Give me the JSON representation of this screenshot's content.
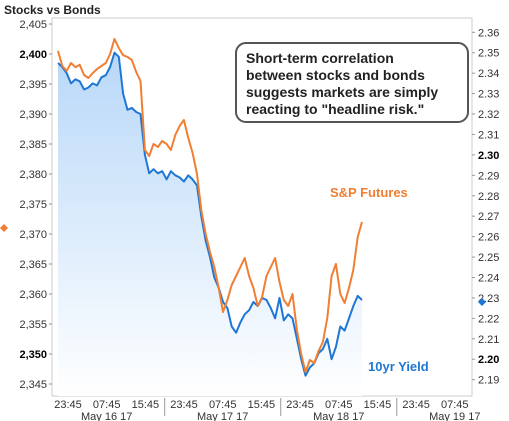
{
  "chart_data": {
    "type": "line",
    "title": "Stocks vs Bonds",
    "annotation": [
      "Short-term correlation",
      "between stocks and bonds",
      "suggests markets are simply",
      "reacting to \"headline risk.\""
    ],
    "x_tick_times": [
      "23:45",
      "07:45",
      "15:45",
      "23:45",
      "07:45",
      "15:45",
      "23:45",
      "07:45",
      "15:45",
      "23:45",
      "07:45"
    ],
    "x_tick_dates": [
      "May 16 17",
      "May 17 17",
      "May 18 17",
      "May 19 17"
    ],
    "y_left": {
      "ylim": [
        2343,
        2406
      ],
      "ticks": [
        "2,345",
        "2,350",
        "2,355",
        "2,360",
        "2,365",
        "2,370",
        "2,375",
        "2,380",
        "2,385",
        "2,390",
        "2,395",
        "2,400",
        "2,405"
      ],
      "bold_ticks": [
        "2,350",
        "2,400"
      ]
    },
    "y_right": {
      "ylim": [
        2.182,
        2.367
      ],
      "ticks": [
        "2.19",
        "2.20",
        "2.21",
        "2.22",
        "2.23",
        "2.24",
        "2.25",
        "2.26",
        "2.27",
        "2.28",
        "2.29",
        "2.30",
        "2.31",
        "2.32",
        "2.33",
        "2.34",
        "2.35",
        "2.36"
      ],
      "bold_ticks": [
        "2.20",
        "2.30"
      ]
    },
    "series": [
      {
        "name": "10yr Yield",
        "axis": "right",
        "color": "#1f77d4",
        "fill_top": "#b8d8f8",
        "fill_bottom": "#ffffff",
        "x": [
          0,
          2,
          4,
          6,
          8,
          10,
          12,
          14,
          16,
          18,
          20,
          22,
          24,
          26,
          28,
          30,
          32,
          34,
          36,
          38,
          40,
          42,
          44,
          46,
          48,
          50,
          52,
          54,
          56,
          58,
          60,
          62,
          64,
          66,
          68,
          70,
          72,
          74,
          76,
          78,
          80,
          82,
          84,
          86,
          88,
          90,
          92,
          94,
          96,
          98,
          100,
          102,
          104,
          106,
          108,
          110,
          112,
          114,
          116,
          118,
          120,
          122,
          124,
          126,
          128,
          130,
          132,
          134,
          136,
          138,
          140
        ],
        "y": [
          2.345,
          2.343,
          2.34,
          2.335,
          2.337,
          2.336,
          2.332,
          2.333,
          2.335,
          2.334,
          2.338,
          2.339,
          2.343,
          2.35,
          2.348,
          2.33,
          2.322,
          2.323,
          2.321,
          2.32,
          2.3,
          2.291,
          2.293,
          2.291,
          2.292,
          2.288,
          2.292,
          2.29,
          2.289,
          2.287,
          2.29,
          2.288,
          2.285,
          2.27,
          2.258,
          2.25,
          2.24,
          2.235,
          2.228,
          2.225,
          2.216,
          2.213,
          2.218,
          2.222,
          2.224,
          2.228,
          2.226,
          2.23,
          2.229,
          2.225,
          2.22,
          2.23,
          2.219,
          2.222,
          2.22,
          2.21,
          2.2,
          2.192,
          2.196,
          2.198,
          2.203,
          2.205,
          2.21,
          2.2,
          2.206,
          2.216,
          2.214,
          2.22,
          2.226,
          2.231,
          2.229
        ]
      },
      {
        "name": "S&P Futures",
        "axis": "left",
        "color": "#f07f33",
        "x": [
          0,
          2,
          4,
          6,
          8,
          10,
          12,
          14,
          16,
          18,
          20,
          22,
          24,
          26,
          28,
          30,
          32,
          34,
          36,
          38,
          40,
          42,
          44,
          46,
          48,
          50,
          52,
          54,
          56,
          58,
          60,
          62,
          64,
          66,
          68,
          70,
          72,
          74,
          76,
          78,
          80,
          82,
          84,
          86,
          88,
          90,
          92,
          94,
          96,
          98,
          100,
          102,
          104,
          106,
          108,
          110,
          112,
          114,
          116,
          118,
          120,
          122,
          124,
          126,
          128,
          130,
          132,
          134,
          136,
          138,
          140
        ],
        "y": [
          2400.5,
          2398.0,
          2397.2,
          2398.5,
          2397.8,
          2398.2,
          2396.5,
          2396.0,
          2396.8,
          2397.5,
          2398.0,
          2398.5,
          2400.0,
          2402.5,
          2401.0,
          2399.8,
          2399.5,
          2399.0,
          2397.0,
          2395.5,
          2384.0,
          2383.0,
          2385.0,
          2384.5,
          2385.5,
          2385.0,
          2384.0,
          2386.5,
          2388.0,
          2389.0,
          2386.0,
          2383.5,
          2380.0,
          2374.0,
          2370.0,
          2367.0,
          2364.5,
          2361.0,
          2357.0,
          2359.0,
          2361.5,
          2363.0,
          2364.5,
          2366.0,
          2363.0,
          2361.0,
          2358.0,
          2359.5,
          2363.0,
          2364.5,
          2366.0,
          2362.0,
          2359.0,
          2358.0,
          2360.0,
          2354.0,
          2350.0,
          2347.0,
          2349.0,
          2348.5,
          2350.5,
          2352.0,
          2356.0,
          2363.0,
          2365.0,
          2360.0,
          2358.5,
          2361.0,
          2364.0,
          2369.5,
          2372.0
        ]
      }
    ],
    "current_markers": [
      {
        "axis": "left",
        "value": 2371,
        "color": "#f07f33"
      },
      {
        "axis": "right",
        "value": 2.228,
        "color": "#1f77d4"
      }
    ],
    "grid": false
  }
}
